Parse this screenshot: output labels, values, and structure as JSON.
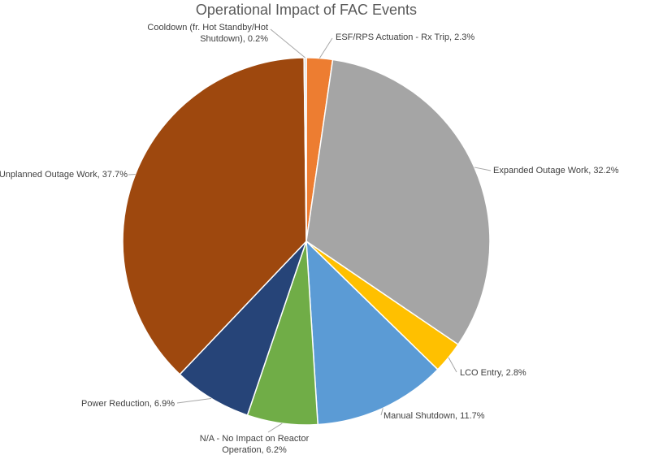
{
  "chart_data": {
    "type": "pie",
    "title": "Operational Impact of FAC Events",
    "values": [
      2.3,
      32.2,
      2.8,
      11.7,
      6.2,
      6.9,
      37.7,
      0.2
    ],
    "value_labels": [
      [
        "ESF/RPS Actuation - Rx Trip, 2.3%"
      ],
      [
        "Expanded Outage Work, 32.2%"
      ],
      [
        "LCO Entry, 2.8%"
      ],
      [
        "Manual Shutdown, 11.7%"
      ],
      [
        "N/A - No Impact on Reactor",
        "Operation, 6.2%"
      ],
      [
        "Power Reduction, 6.9%"
      ],
      [
        "Unplanned Outage Work, 37.7%"
      ],
      [
        "Cooldown (fr. Hot Standby/Hot",
        "Shutdown), 0.2%"
      ]
    ],
    "colors": [
      "#ed7d31",
      "#a5a5a5",
      "#ffc000",
      "#5b9bd5",
      "#70ad47",
      "#264478",
      "#9e480e",
      "#d9d9d9"
    ]
  }
}
